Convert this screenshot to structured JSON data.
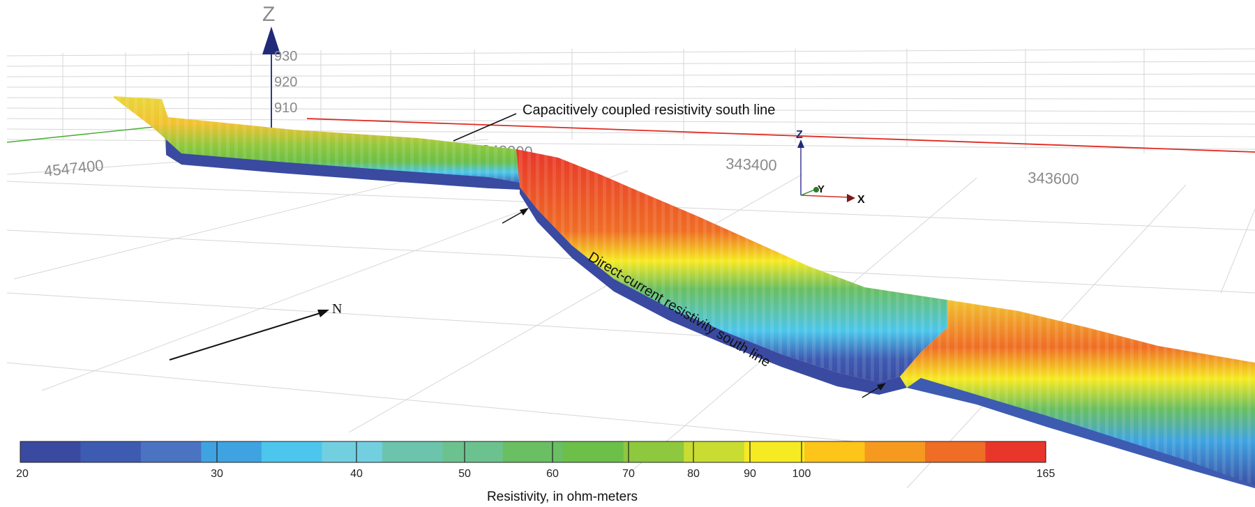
{
  "axes": {
    "z_axis_label": "Z",
    "z_ticks": [
      "930",
      "920",
      "910"
    ],
    "grid_labels": {
      "northing": "4547400",
      "easting_partial": "343200",
      "easting_mid": "343400",
      "easting_right": "343600"
    },
    "orientation_triad": {
      "z": "Z",
      "y": "Y",
      "x": "X"
    }
  },
  "annotations": {
    "cc_line": "Capacitively coupled resistivity south line",
    "dc_line": "Direct-current resistivity south line",
    "north_arrow": "N"
  },
  "colorbar": {
    "title": "Resistivity, in ohm-meters",
    "ticks": [
      "20",
      "30",
      "40",
      "50",
      "60",
      "70",
      "80",
      "90",
      "100",
      "165"
    ],
    "colors": [
      "#3a4aa0",
      "#3e5bb2",
      "#4a74c2",
      "#3fa3e2",
      "#4cc6ec",
      "#72cfe0",
      "#6cc4ad",
      "#6cc28e",
      "#69bf62",
      "#6cbf48",
      "#8ec83e",
      "#c8dc32",
      "#f6ea22",
      "#fdc419",
      "#f69a1f",
      "#ef6d25",
      "#e8372a"
    ]
  }
}
